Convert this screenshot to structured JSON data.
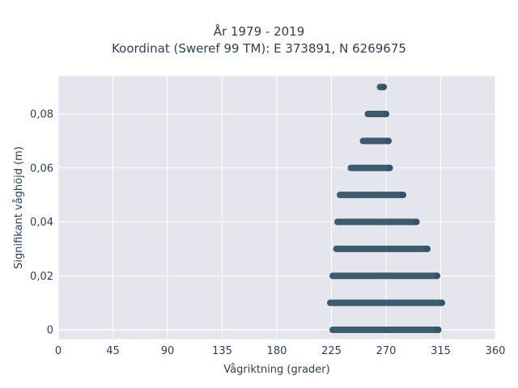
{
  "chart_data": {
    "type": "scatter",
    "title_lines": [
      "År 1979 - 2019",
      "Koordinat (Sweref 99 TM): E 373891, N 6269675"
    ],
    "xlabel": "Vågriktning (grader)",
    "ylabel": "Signifikant våghöjd (m)",
    "xlim": [
      0,
      360
    ],
    "ylim": [
      -0.0035,
      0.094
    ],
    "x_ticks": [
      0,
      45,
      90,
      135,
      180,
      225,
      270,
      315,
      360
    ],
    "x_tick_labels": [
      "0",
      "45",
      "90",
      "135",
      "180",
      "225",
      "270",
      "315",
      "360"
    ],
    "y_ticks": [
      0,
      0.02,
      0.04,
      0.06,
      0.08
    ],
    "y_tick_labels": [
      "0",
      "0,02",
      "0,04",
      "0,06",
      "0,08"
    ],
    "grid": true,
    "marker_color": "#2f4f64",
    "plot_background": "#e5e5ee",
    "series": [
      {
        "values_by_height": [
          {
            "y": 0.0,
            "x_range": [
              226,
              313
            ]
          },
          {
            "y": 0.01,
            "x_range": [
              224,
              316
            ]
          },
          {
            "y": 0.02,
            "x_range": [
              226,
              312
            ]
          },
          {
            "y": 0.03,
            "x_range": [
              229,
              304
            ]
          },
          {
            "y": 0.04,
            "x_range": [
              230,
              295
            ]
          },
          {
            "y": 0.05,
            "x_range": [
              232,
              284
            ]
          },
          {
            "y": 0.06,
            "x_range": [
              241,
              273
            ]
          },
          {
            "y": 0.07,
            "x_range": [
              251,
              272
            ]
          },
          {
            "y": 0.08,
            "x_range": [
              255,
              270
            ]
          },
          {
            "y": 0.09,
            "x_range": [
              265,
              268
            ]
          }
        ]
      }
    ]
  }
}
